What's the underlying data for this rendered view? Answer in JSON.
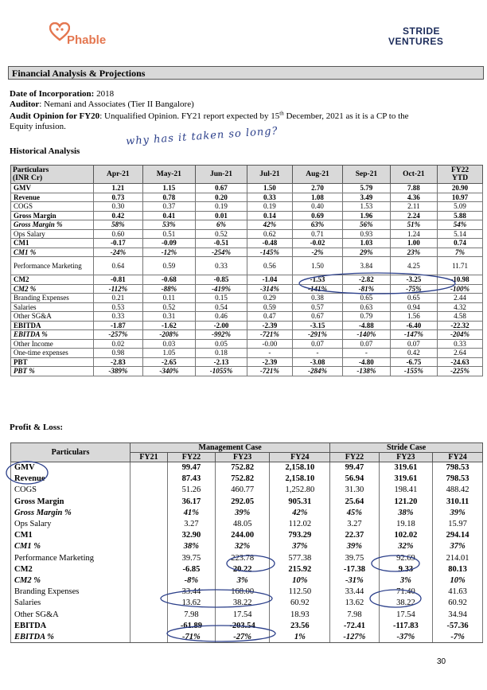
{
  "header": {
    "left_logo_text": "Phable",
    "right_logo_line1": "STRIDE",
    "right_logo_line2": "VENTURES"
  },
  "section_title": "Financial Analysis & Projections",
  "meta": {
    "incorporation_label": "Date of Incorporation:",
    "incorporation_value": "2018",
    "auditor_label": "Auditor",
    "auditor_value": ":  Nemani and Associates (Tier II Bangalore)",
    "opinion_label": "Audit Opinion for FY20",
    "opinion_value_a": ": Unqualified Opinion. FY21 report expected by 15",
    "opinion_sup": "th",
    "opinion_value_b": " December, 2021 as it is a CP to the",
    "opinion_value_c": "Equity infusion."
  },
  "handwriting_note": "why has it taken so long?",
  "historical": {
    "title": "Historical Analysis",
    "header_label_1": "Particulars",
    "header_label_2": "(INR Cr)",
    "columns": [
      "Apr-21",
      "May-21",
      "Jun-21",
      "Jul-21",
      "Aug-21",
      "Sep-21",
      "Oct-21"
    ],
    "ytd_1": "FY22",
    "ytd_2": "YTD",
    "rows": [
      {
        "label": "GMV",
        "style": "bold",
        "values": [
          "1.21",
          "1.15",
          "0.67",
          "1.50",
          "2.70",
          "5.79",
          "7.88",
          "20.90"
        ]
      },
      {
        "label": "Revenue",
        "style": "bold",
        "values": [
          "0.73",
          "0.78",
          "0.20",
          "0.33",
          "1.08",
          "3.49",
          "4.36",
          "10.97"
        ]
      },
      {
        "label": "COGS",
        "style": "",
        "values": [
          "0.30",
          "0.37",
          "0.19",
          "0.19",
          "0.40",
          "1.53",
          "2.11",
          "5.09"
        ]
      },
      {
        "label": "Gross Margin",
        "style": "bold",
        "values": [
          "0.42",
          "0.41",
          "0.01",
          "0.14",
          "0.69",
          "1.96",
          "2.24",
          "5.88"
        ]
      },
      {
        "label": "Gross Margin %",
        "style": "bold italic",
        "values": [
          "58%",
          "53%",
          "6%",
          "42%",
          "63%",
          "56%",
          "51%",
          "54%"
        ]
      },
      {
        "label": "Ops Salary",
        "style": "",
        "values": [
          "0.60",
          "0.51",
          "0.52",
          "0.62",
          "0.71",
          "0.93",
          "1.24",
          "5.14"
        ]
      },
      {
        "label": "CM1",
        "style": "bold",
        "values": [
          "-0.17",
          "-0.09",
          "-0.51",
          "-0.48",
          "-0.02",
          "1.03",
          "1.00",
          "0.74"
        ]
      },
      {
        "label": "CM1 %",
        "style": "bold italic",
        "values": [
          "-24%",
          "-12%",
          "-254%",
          "-145%",
          "-2%",
          "29%",
          "23%",
          "7%"
        ]
      },
      {
        "label": "Performance Marketing",
        "style": "tall",
        "values": [
          "0.64",
          "0.59",
          "0.33",
          "0.56",
          "1.50",
          "3.84",
          "4.25",
          "11.71"
        ]
      },
      {
        "label": "CM2",
        "style": "bold",
        "values": [
          "-0.81",
          "-0.68",
          "-0.85",
          "-1.04",
          "-1.53",
          "-2.82",
          "-3.25",
          "-10.98"
        ]
      },
      {
        "label": "CM2 %",
        "style": "bold italic",
        "values": [
          "-112%",
          "-88%",
          "-419%",
          "-314%",
          "-141%",
          "-81%",
          "-75%",
          "-100%"
        ]
      },
      {
        "label": "Branding Expenses",
        "style": "",
        "values": [
          "0.21",
          "0.11",
          "0.15",
          "0.29",
          "0.38",
          "0.65",
          "0.65",
          "2.44"
        ]
      },
      {
        "label": "Salaries",
        "style": "",
        "values": [
          "0.53",
          "0.52",
          "0.54",
          "0.59",
          "0.57",
          "0.63",
          "0.94",
          "4.32"
        ]
      },
      {
        "label": "Other SG&A",
        "style": "",
        "values": [
          "0.33",
          "0.31",
          "0.46",
          "0.47",
          "0.67",
          "0.79",
          "1.56",
          "4.58"
        ]
      },
      {
        "label": "EBITDA",
        "style": "bold",
        "values": [
          "-1.87",
          "-1.62",
          "-2.00",
          "-2.39",
          "-3.15",
          "-4.88",
          "-6.40",
          "-22.32"
        ]
      },
      {
        "label": "EBITDA %",
        "style": "bold italic",
        "values": [
          "-257%",
          "-208%",
          "-992%",
          "-721%",
          "-291%",
          "-140%",
          "-147%",
          "-204%"
        ]
      },
      {
        "label": "Other Income",
        "style": "",
        "values": [
          "0.02",
          "0.03",
          "0.05",
          "-0.00",
          "0.07",
          "0.07",
          "0.07",
          "0.33"
        ]
      },
      {
        "label": "One-time expenses",
        "style": "",
        "values": [
          "0.98",
          "1.05",
          "0.18",
          "-",
          "-",
          "-",
          "0.42",
          "2.64"
        ]
      },
      {
        "label": "PBT",
        "style": "bold",
        "values": [
          "-2.83",
          "-2.65",
          "-2.13",
          "-2.39",
          "-3.08",
          "-4.80",
          "-6.75",
          "-24.63"
        ]
      },
      {
        "label": "PBT %",
        "style": "bold italic",
        "values": [
          "-389%",
          "-340%",
          "-1055%",
          "-721%",
          "-284%",
          "-138%",
          "-155%",
          "-225%"
        ]
      }
    ]
  },
  "pl": {
    "title": "Profit & Loss:",
    "particulars": "Particulars",
    "management_case": "Management Case",
    "stride_case": "Stride Case",
    "years": [
      "FY21",
      "FY22",
      "FY23",
      "FY24",
      "FY22",
      "FY23",
      "FY24"
    ],
    "rows": [
      {
        "label": "GMV",
        "style": "bold",
        "values": [
          "",
          "99.47",
          "752.82",
          "2,158.10",
          "99.47",
          "319.61",
          "798.53"
        ]
      },
      {
        "label": "Revenue",
        "style": "bold",
        "values": [
          "",
          "87.43",
          "752.82",
          "2,158.10",
          "56.94",
          "319.61",
          "798.53"
        ]
      },
      {
        "label": "COGS",
        "style": "",
        "values": [
          "",
          "51.26",
          "460.77",
          "1,252.80",
          "31.30",
          "198.41",
          "488.42"
        ]
      },
      {
        "label": "Gross Margin",
        "style": "bold",
        "values": [
          "",
          "36.17",
          "292.05",
          "905.31",
          "25.64",
          "121.20",
          "310.11"
        ]
      },
      {
        "label": "Gross Margin %",
        "style": "bold italic",
        "values": [
          "",
          "41%",
          "39%",
          "42%",
          "45%",
          "38%",
          "39%"
        ]
      },
      {
        "label": "Ops Salary",
        "style": "",
        "values": [
          "",
          "3.27",
          "48.05",
          "112.02",
          "3.27",
          "19.18",
          "15.97"
        ]
      },
      {
        "label": "CM1",
        "style": "bold",
        "values": [
          "",
          "32.90",
          "244.00",
          "793.29",
          "22.37",
          "102.02",
          "294.14"
        ]
      },
      {
        "label": "CM1 %",
        "style": "bold italic",
        "values": [
          "",
          "38%",
          "32%",
          "37%",
          "39%",
          "32%",
          "37%"
        ]
      },
      {
        "label": "Performance Marketing",
        "style": "",
        "values": [
          "",
          "39.75",
          "223.78",
          "577.38",
          "39.75",
          "92.69",
          "214.01"
        ]
      },
      {
        "label": "CM2",
        "style": "bold",
        "values": [
          "",
          "-6.85",
          "20.22",
          "215.92",
          "-17.38",
          "9.33",
          "80.13"
        ]
      },
      {
        "label": "CM2 %",
        "style": "bold italic",
        "values": [
          "",
          "-8%",
          "3%",
          "10%",
          "-31%",
          "3%",
          "10%"
        ]
      },
      {
        "label": "Branding Expenses",
        "style": "",
        "values": [
          "",
          "33.44",
          "168.00",
          "112.50",
          "33.44",
          "71.40",
          "41.63"
        ]
      },
      {
        "label": "Salaries",
        "style": "",
        "values": [
          "",
          "13.62",
          "38.22",
          "60.92",
          "13.62",
          "38.22",
          "60.92"
        ]
      },
      {
        "label": "Other SG&A",
        "style": "",
        "values": [
          "",
          "7.98",
          "17.54",
          "18.93",
          "7.98",
          "17.54",
          "34.94"
        ]
      },
      {
        "label": "EBITDA",
        "style": "bold",
        "values": [
          "",
          "-61.89",
          "-203.54",
          "23.56",
          "-72.41",
          "-117.83",
          "-57.36"
        ]
      },
      {
        "label": "EBITDA %",
        "style": "bold italic",
        "values": [
          "",
          "-71%",
          "-27%",
          "1%",
          "-127%",
          "-37%",
          "-7%"
        ]
      }
    ]
  },
  "page_number": "30",
  "colors": {
    "header_fill": "#d9d9d9",
    "phable_orange": "#e4764f",
    "stride_navy": "#1b2b5a",
    "pen_blue": "#2b3f8a"
  }
}
